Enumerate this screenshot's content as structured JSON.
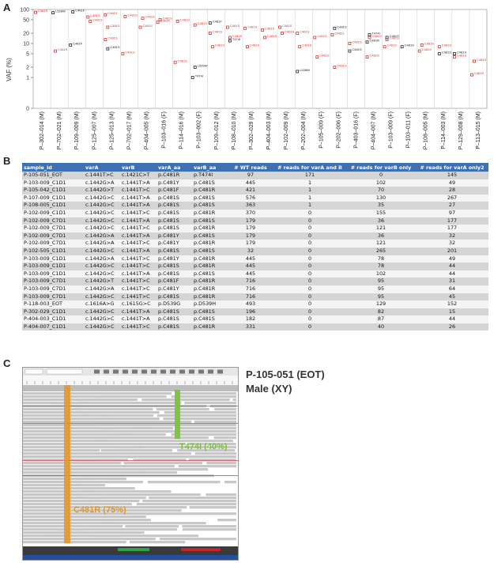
{
  "panel_letters": {
    "a": "A",
    "b": "B",
    "c": "C"
  },
  "chart_data": {
    "type": "scatter",
    "ylabel": "VAF (%)",
    "yscale": "log",
    "yticks": [
      "100",
      "50",
      "20",
      "10",
      "5",
      "2",
      "1",
      "0"
    ],
    "categories": [
      "P–302–014 (M)",
      "P–702–021 (M)",
      "P–109–009 (M)",
      "P–125–007 (M)",
      "P–125–013 (M)",
      "P–702–017 (M)",
      "P–404–005 (M)",
      "P–103–016 (F)",
      "P–114–016 (M)",
      "P–103–002 (F)",
      "P–109–012 (M)",
      "P–108–010 (M)",
      "P–302–029 (M)",
      "P–404–003 (M)",
      "P–102–009 (M)",
      "P–202–004 (M)",
      "P–105–009 (F)",
      "P–202–006 (F)",
      "P–403–016 (F)",
      "P–404–007 (M)",
      "P–103–009 (F)",
      "P–103–011 (F)",
      "P–108–005 (M)",
      "P–114–003 (M)",
      "P–129–008 (M)",
      "P–113–015 (M)"
    ],
    "series": [
      {
        "color": "#d9322b",
        "points": [
          {
            "x": 0,
            "y": 82,
            "label": "C481S"
          },
          {
            "x": 1,
            "y": 6,
            "label": "C481S"
          },
          {
            "x": 3,
            "y": 60,
            "label": "C481S"
          },
          {
            "x": 3,
            "y": 45,
            "label": "C481S"
          },
          {
            "x": 4,
            "y": 70,
            "label": "C481S"
          },
          {
            "x": 4,
            "y": 30,
            "label": "C481S"
          },
          {
            "x": 4,
            "y": 13,
            "label": "C481S"
          },
          {
            "x": 5,
            "y": 62,
            "label": "C481S"
          },
          {
            "x": 5,
            "y": 5,
            "label": "C481S"
          },
          {
            "x": 6,
            "y": 55,
            "label": "C481S"
          },
          {
            "x": 6,
            "y": 30,
            "label": "C481S"
          },
          {
            "x": 7,
            "y": 50,
            "label": "C481S"
          },
          {
            "x": 7,
            "y": 42,
            "label": "C481R"
          },
          {
            "x": 8,
            "y": 45,
            "label": "C481S"
          },
          {
            "x": 8,
            "y": 2.8,
            "label": "C481S"
          },
          {
            "x": 9,
            "y": 35,
            "label": "C481S"
          },
          {
            "x": 10,
            "y": 20,
            "label": "C481S"
          },
          {
            "x": 10,
            "y": 8,
            "label": "C481S"
          },
          {
            "x": 11,
            "y": 30,
            "label": "C481S"
          },
          {
            "x": 11,
            "y": 15,
            "label": "C481S"
          },
          {
            "x": 12,
            "y": 28,
            "label": "C481S"
          },
          {
            "x": 12,
            "y": 8,
            "label": "C481S"
          },
          {
            "x": 13,
            "y": 25,
            "label": "C481S"
          },
          {
            "x": 13,
            "y": 15,
            "label": "C481S"
          },
          {
            "x": 14,
            "y": 30,
            "label": "C481S"
          },
          {
            "x": 14,
            "y": 20,
            "label": "C481S"
          },
          {
            "x": 15,
            "y": 20,
            "label": "C481S"
          },
          {
            "x": 15,
            "y": 8,
            "label": "C481S"
          },
          {
            "x": 16,
            "y": 15,
            "label": "C481S"
          },
          {
            "x": 16,
            "y": 4,
            "label": "C481S"
          },
          {
            "x": 17,
            "y": 18,
            "label": "C481S"
          },
          {
            "x": 17,
            "y": 2,
            "label": "C481S"
          },
          {
            "x": 18,
            "y": 10,
            "label": "C481S"
          },
          {
            "x": 19,
            "y": 15,
            "label": "C481S"
          },
          {
            "x": 19,
            "y": 4,
            "label": "C481S"
          },
          {
            "x": 20,
            "y": 13,
            "label": "C481S"
          },
          {
            "x": 20,
            "y": 8,
            "label": "C481S"
          },
          {
            "x": 22,
            "y": 9,
            "label": "C481S"
          },
          {
            "x": 22,
            "y": 6,
            "label": "C481S"
          },
          {
            "x": 23,
            "y": 8,
            "label": "C481S"
          },
          {
            "x": 24,
            "y": 4,
            "label": "C481S"
          },
          {
            "x": 25,
            "y": 3,
            "label": "C481S"
          },
          {
            "x": 25,
            "y": 1.2,
            "label": "C481S"
          }
        ]
      },
      {
        "color": "#222222",
        "points": [
          {
            "x": 1,
            "y": 80,
            "label": "L528W"
          },
          {
            "x": 2,
            "y": 85,
            "label": "C481F"
          },
          {
            "x": 2,
            "y": 9,
            "label": "C481F"
          },
          {
            "x": 4,
            "y": 7,
            "label": "C481S"
          },
          {
            "x": 9,
            "y": 1,
            "label": "T474I"
          },
          {
            "x": 9,
            "y": 2,
            "label": "L528W"
          },
          {
            "x": 10,
            "y": 40,
            "label": "C481F"
          },
          {
            "x": 11,
            "y": 12,
            "label": "T474I"
          },
          {
            "x": 15,
            "y": 1.5,
            "label": "L528W"
          },
          {
            "x": 17,
            "y": 28,
            "label": "C481S"
          },
          {
            "x": 18,
            "y": 6,
            "label": "C481S"
          },
          {
            "x": 19,
            "y": 18,
            "label": "T474I"
          },
          {
            "x": 19,
            "y": 11,
            "label": "C481R"
          },
          {
            "x": 20,
            "y": 15,
            "label": "C481S"
          },
          {
            "x": 21,
            "y": 8,
            "label": "C481S"
          },
          {
            "x": 23,
            "y": 5,
            "label": "C481S"
          },
          {
            "x": 24,
            "y": 5,
            "label": "C481S"
          }
        ]
      }
    ]
  },
  "table": {
    "headers": [
      "sample_id",
      "varA",
      "varB",
      "varA_aa",
      "varB_aa",
      "# WT reads",
      "# reads for varA and B",
      "# reads for varB only",
      "# reads for varA only2"
    ],
    "rows": [
      [
        "P-105-051_EOT",
        "c.1441T>C",
        "c.1421C>T",
        "p.C481R",
        "p.T474I",
        "97",
        "171",
        "0",
        "145"
      ],
      [
        "P-103-009_C1D1",
        "c.1442G>A",
        "c.1441T>A",
        "p.C481Y",
        "p.C481S",
        "445",
        "1",
        "102",
        "49"
      ],
      [
        "P-105-042_C1D1",
        "c.1442G>T",
        "c.1441T>C",
        "p.C481F",
        "p.C481R",
        "421",
        "1",
        "70",
        "28"
      ],
      [
        "P-107-009_C1D1",
        "c.1442G>C",
        "c.1441T>A",
        "p.C481S",
        "p.C481S",
        "576",
        "1",
        "130",
        "267"
      ],
      [
        "P-108-005_C1D1",
        "c.1442G>C",
        "c.1441T>A",
        "p.C481S",
        "p.C481S",
        "363",
        "1",
        "35",
        "27"
      ],
      [
        "P-102-009_C1D1",
        "c.1442G>C",
        "c.1441T>C",
        "p.C481S",
        "p.C481R",
        "370",
        "0",
        "155",
        "97"
      ],
      [
        "P-102-009_C7D1",
        "c.1442G>C",
        "c.1441T>A",
        "p.C481S",
        "p.C481S",
        "179",
        "0",
        "36",
        "177"
      ],
      [
        "P-102-009_C7D1",
        "c.1442G>C",
        "c.1441T>C",
        "p.C481S",
        "p.C481R",
        "179",
        "0",
        "121",
        "177"
      ],
      [
        "P-102-009_C7D1",
        "c.1442G>A",
        "c.1441T>A",
        "p.C481Y",
        "p.C481S",
        "179",
        "0",
        "36",
        "32"
      ],
      [
        "P-102-009_C7D1",
        "c.1442G>A",
        "c.1441T>C",
        "p.C481Y",
        "p.C481R",
        "179",
        "0",
        "121",
        "32"
      ],
      [
        "P-102-505_C1D1",
        "c.1442G>C",
        "c.1441T>A",
        "p.C481S",
        "p.C481S",
        "32",
        "0",
        "265",
        "201"
      ],
      [
        "P-103-009_C1D1",
        "c.1442G>A",
        "c.1441T>C",
        "p.C481Y",
        "p.C481R",
        "445",
        "0",
        "78",
        "49"
      ],
      [
        "P-103-009_C1D1",
        "c.1442G>C",
        "c.1441T>C",
        "p.C481S",
        "p.C481R",
        "445",
        "0",
        "78",
        "44"
      ],
      [
        "P-103-009_C1D1",
        "c.1442G>C",
        "c.1441T>A",
        "p.C481S",
        "p.C481S",
        "445",
        "0",
        "102",
        "44"
      ],
      [
        "P-103-009_C7D1",
        "c.1442G>T",
        "c.1441T>C",
        "p.C481F",
        "p.C481R",
        "716",
        "0",
        "95",
        "31"
      ],
      [
        "P-103-009_C7D1",
        "c.1442G>A",
        "c.1441T>C",
        "p.C481Y",
        "p.C481R",
        "716",
        "0",
        "95",
        "64"
      ],
      [
        "P-103-009_C7D1",
        "c.1442G>C",
        "c.1441T>C",
        "p.C481S",
        "p.C481R",
        "716",
        "0",
        "95",
        "45"
      ],
      [
        "P-118-003_EOT",
        "c.1616A>G",
        "c.1615G>C",
        "p.D539G",
        "p.D539H",
        "493",
        "0",
        "129",
        "152"
      ],
      [
        "P-302-029_C1D1",
        "c.1442G>C",
        "c.1441T>A",
        "p.C481S",
        "p.C481S",
        "196",
        "0",
        "82",
        "15"
      ],
      [
        "P-404-003_C1D1",
        "c.1442G>C",
        "c.1441T>A",
        "p.C481S",
        "p.C481S",
        "182",
        "0",
        "87",
        "44"
      ],
      [
        "P-404-007_C1D1",
        "c.1442G>C",
        "c.1441T>C",
        "p.C481S",
        "p.C481R",
        "331",
        "0",
        "40",
        "26"
      ]
    ]
  },
  "igv": {
    "sample_id": "P-105-051 (EOT)",
    "sex": "Male (XY)",
    "mutations": [
      {
        "label": "T474I (40%)",
        "color": "#7cc242"
      },
      {
        "label": "C481R (75%)",
        "color": "#e0982a"
      }
    ]
  }
}
